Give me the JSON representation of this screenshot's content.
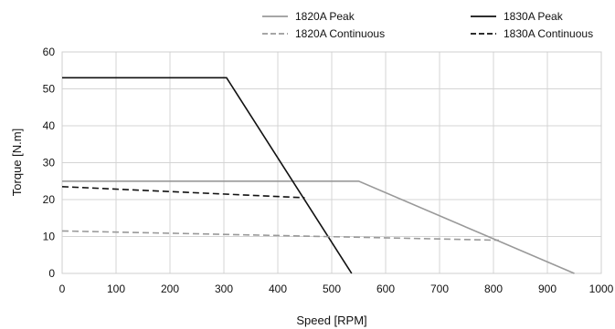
{
  "chart_data": {
    "type": "line",
    "title": "",
    "xlabel": "Speed [RPM]",
    "ylabel": "Torque [N.m]",
    "xlim": [
      0,
      1000
    ],
    "ylim": [
      0,
      60
    ],
    "xticks": [
      0,
      100,
      200,
      300,
      400,
      500,
      600,
      700,
      800,
      900,
      1000
    ],
    "yticks": [
      0,
      10,
      20,
      30,
      40,
      50,
      60
    ],
    "grid": true,
    "legend_position": "top-right",
    "series": [
      {
        "name": "1820A Peak",
        "color": "#999999",
        "dash": "solid",
        "x": [
          0,
          550,
          950
        ],
        "y": [
          25,
          25,
          0
        ]
      },
      {
        "name": "1830A Peak",
        "color": "#111111",
        "dash": "solid",
        "x": [
          0,
          305,
          537
        ],
        "y": [
          53,
          53,
          0
        ]
      },
      {
        "name": "1820A Continuous",
        "color": "#999999",
        "dash": "dashed",
        "x": [
          0,
          810
        ],
        "y": [
          11.5,
          9
        ]
      },
      {
        "name": "1830A Continuous",
        "color": "#111111",
        "dash": "dashed",
        "x": [
          0,
          450
        ],
        "y": [
          23.5,
          20.5
        ]
      }
    ]
  }
}
